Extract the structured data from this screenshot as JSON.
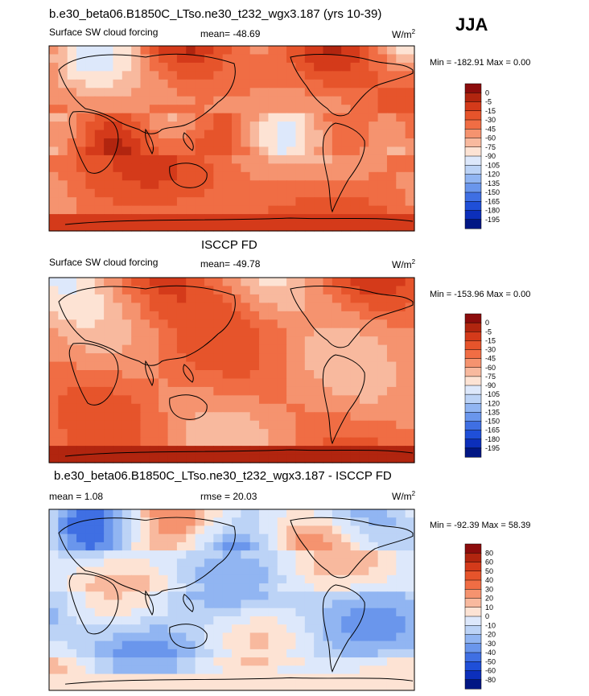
{
  "season": "JJA",
  "panels": [
    {
      "title": "b.e30_beta06.B1850C_LTso.ne30_t232_wgx3.187 (yrs 10-39)",
      "left_label": "Surface SW cloud forcing",
      "center_label": "mean= -48.69",
      "units": "W/m",
      "units_exp": "2",
      "minmax": "Min = -182.91 Max =   0.00"
    },
    {
      "title": "ISCCP FD",
      "left_label": "Surface SW cloud forcing",
      "center_label": "mean= -49.78",
      "units": "W/m",
      "units_exp": "2",
      "minmax": "Min = -153.96 Max =   0.00"
    },
    {
      "title": "b.e30_beta06.B1850C_LTso.ne30_t232_wgx3.187 - ISCCP FD",
      "left_label": "mean =   1.08",
      "center_label": "rmse =  20.03",
      "units": "W/m",
      "units_exp": "2",
      "minmax": "Min = -92.39 Max =  58.39"
    }
  ],
  "chart_data": [
    {
      "type": "heatmap",
      "title": "b.e30_beta06.B1850C_LTso.ne30_t232_wgx3.187 (yrs 10-39)",
      "subtitle": "Surface SW cloud forcing",
      "units": "W/m2",
      "mean": -48.69,
      "min": -182.91,
      "max": 0.0,
      "colorbar_levels": [
        "0",
        "-5",
        "-15",
        "-30",
        "-45",
        "-60",
        "-75",
        "-90",
        "-105",
        "-120",
        "-135",
        "-150",
        "-165",
        "-180",
        "-195"
      ],
      "colorbar_colors": [
        "#8c0c0c",
        "#b1250f",
        "#d43a1a",
        "#e6542b",
        "#f06d44",
        "#f5936f",
        "#f8b99e",
        "#fde3d4",
        "#dde8fb",
        "#bcd3f6",
        "#91b5f2",
        "#6a96ec",
        "#3f6fe3",
        "#1f4fd8",
        "#0c2fbb",
        "#021784"
      ],
      "colorbar_ticks_min_max": [
        "Min = -182.91",
        "Max = 0.00"
      ]
    },
    {
      "type": "heatmap",
      "title": "ISCCP FD",
      "subtitle": "Surface SW cloud forcing",
      "units": "W/m2",
      "mean": -49.78,
      "min": -153.96,
      "max": 0.0,
      "colorbar_levels": [
        "0",
        "-5",
        "-15",
        "-30",
        "-45",
        "-60",
        "-75",
        "-90",
        "-105",
        "-120",
        "-135",
        "-150",
        "-165",
        "-180",
        "-195"
      ],
      "colorbar_colors": [
        "#8c0c0c",
        "#b1250f",
        "#d43a1a",
        "#e6542b",
        "#f06d44",
        "#f5936f",
        "#f8b99e",
        "#fde3d4",
        "#dde8fb",
        "#bcd3f6",
        "#91b5f2",
        "#6a96ec",
        "#3f6fe3",
        "#1f4fd8",
        "#0c2fbb",
        "#021784"
      ]
    },
    {
      "type": "heatmap",
      "title": "b.e30_beta06.B1850C_LTso.ne30_t232_wgx3.187 - ISCCP FD",
      "units": "W/m2",
      "mean": 1.08,
      "rmse": 20.03,
      "min": -92.39,
      "max": 58.39,
      "colorbar_levels": [
        "80",
        "60",
        "50",
        "40",
        "30",
        "20",
        "10",
        "0",
        "-10",
        "-20",
        "-30",
        "-40",
        "-50",
        "-60",
        "-80"
      ],
      "colorbar_colors": [
        "#8c0c0c",
        "#b1250f",
        "#d43a1a",
        "#e6542b",
        "#f06d44",
        "#f5936f",
        "#f8b99e",
        "#fde3d4",
        "#dde8fb",
        "#bcd3f6",
        "#91b5f2",
        "#6a96ec",
        "#3f6fe3",
        "#1f4fd8",
        "#0c2fbb",
        "#021784"
      ]
    }
  ]
}
